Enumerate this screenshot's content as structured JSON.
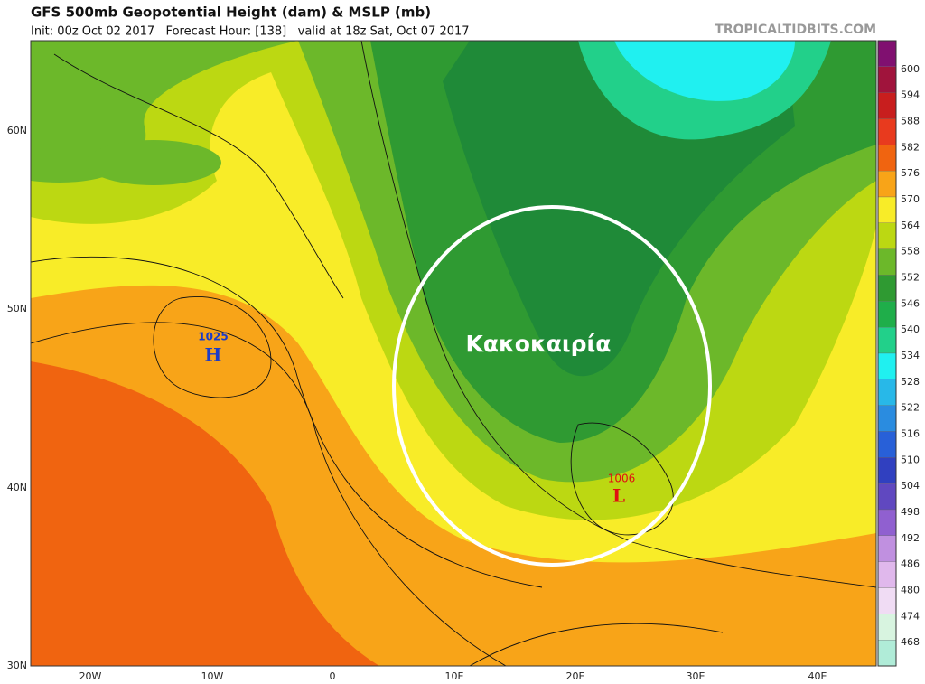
{
  "header": {
    "title": "GFS 500mb Geopotential Height (dam) & MSLP (mb)",
    "subtitle": "Init: 00z Oct 02 2017   Forecast Hour: [138]   valid at 18z Sat, Oct 07 2017",
    "watermark": "TROPICALTIDBITS.COM"
  },
  "map": {
    "lat_labels": [
      "60N",
      "50N",
      "40N",
      "30N"
    ],
    "lon_labels": [
      "20W",
      "10W",
      "0",
      "10E",
      "20E",
      "30E",
      "40E"
    ],
    "high": {
      "pressure": "1025",
      "letter": "H"
    },
    "low": {
      "pressure": "1006",
      "letter": "L"
    },
    "annotation": "Κακοκαιρία"
  },
  "colorbar": {
    "levels": [
      600,
      594,
      588,
      582,
      576,
      570,
      564,
      558,
      552,
      546,
      540,
      534,
      528,
      522,
      516,
      510,
      504,
      498,
      492,
      486,
      480,
      474,
      468
    ],
    "colors": [
      "#a0143c",
      "#c81e1e",
      "#e83a1e",
      "#f06410",
      "#f8a418",
      "#f8ec28",
      "#bcd812",
      "#6cb82a",
      "#2f9a32",
      "#1fae4a",
      "#22d08a",
      "#20f0f0",
      "#28b8e8",
      "#2a8ce0",
      "#2860d8",
      "#3040c0",
      "#6048c0",
      "#9060d0",
      "#c090e0",
      "#e0b8ec",
      "#f0dcf4",
      "#d8f4e0",
      "#b0ecd8"
    ],
    "top_color": "#801070"
  }
}
